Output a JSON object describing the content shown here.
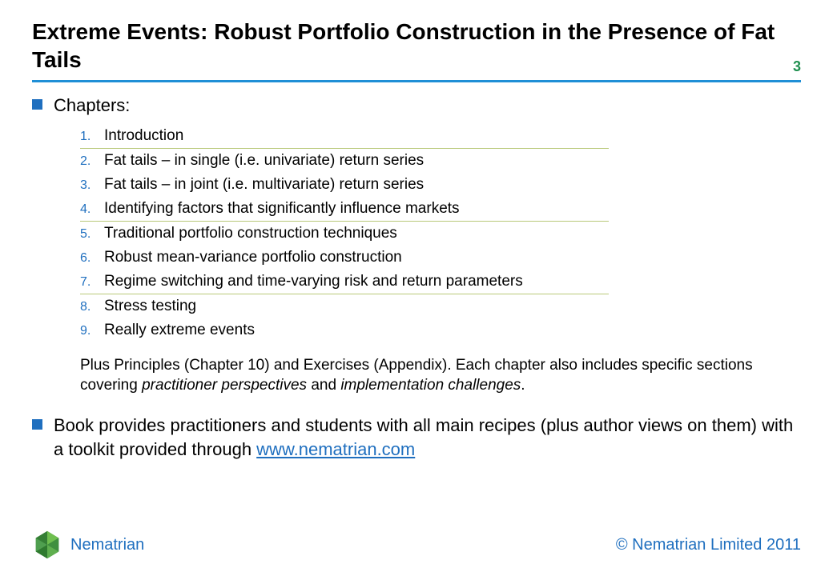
{
  "colors": {
    "title_underline": "#1f8fd6",
    "page_number": "#1f8f4f",
    "bullet_square": "#1f6fbf",
    "chapter_number": "#1f6fbf",
    "separator": "#b9c97a",
    "link": "#1f6fbf",
    "brand": "#1f6fbf",
    "copyright": "#1f6fbf",
    "logo_dark": "#2f7a2f",
    "logo_light": "#6fbf4f",
    "text": "#000000",
    "background": "#ffffff"
  },
  "sizes": {
    "title_fontsize": 28,
    "page_number_fontsize": 18,
    "bullet_fontsize": 22,
    "chapter_number_fontsize": 16,
    "chapter_text_fontsize": 19,
    "note_fontsize": 19,
    "footer_fontsize": 20,
    "title_underline_width": 3,
    "separator_width": 1,
    "chapter_block_width": 660
  },
  "header": {
    "title": "Extreme Events: Robust Portfolio Construction in the Presence of Fat Tails",
    "page_number": "3"
  },
  "body": {
    "chapters_label": "Chapters:",
    "chapters": [
      {
        "n": "1.",
        "text": "Introduction",
        "sep_after": true
      },
      {
        "n": "2.",
        "text": "Fat tails – in single (i.e. univariate) return series",
        "sep_after": false
      },
      {
        "n": "3.",
        "text": "Fat tails – in joint (i.e. multivariate) return series",
        "sep_after": false
      },
      {
        "n": "4.",
        "text": "Identifying factors that significantly influence markets",
        "sep_after": true
      },
      {
        "n": "5.",
        "text": "Traditional portfolio construction techniques",
        "sep_after": false
      },
      {
        "n": "6.",
        "text": "Robust mean-variance portfolio construction",
        "sep_after": false
      },
      {
        "n": "7.",
        "text": "Regime switching and time-varying risk and return parameters",
        "sep_after": true
      },
      {
        "n": "8.",
        "text": "Stress testing",
        "sep_after": false
      },
      {
        "n": "9.",
        "text": "Really extreme events",
        "sep_after": false
      }
    ],
    "note_plain1": "Plus Principles (Chapter 10) and Exercises (Appendix). Each chapter also includes specific sections covering ",
    "note_ital1": "practitioner perspectives",
    "note_plain2": " and ",
    "note_ital2": "implementation challenges",
    "note_plain3": ".",
    "second_bullet_pre": "Book provides practitioners and students with all main recipes (plus author views on them) with a toolkit provided through ",
    "second_bullet_link": "www.nematrian.com"
  },
  "footer": {
    "brand": "Nematrian",
    "copyright": "© Nematrian Limited 2011"
  }
}
